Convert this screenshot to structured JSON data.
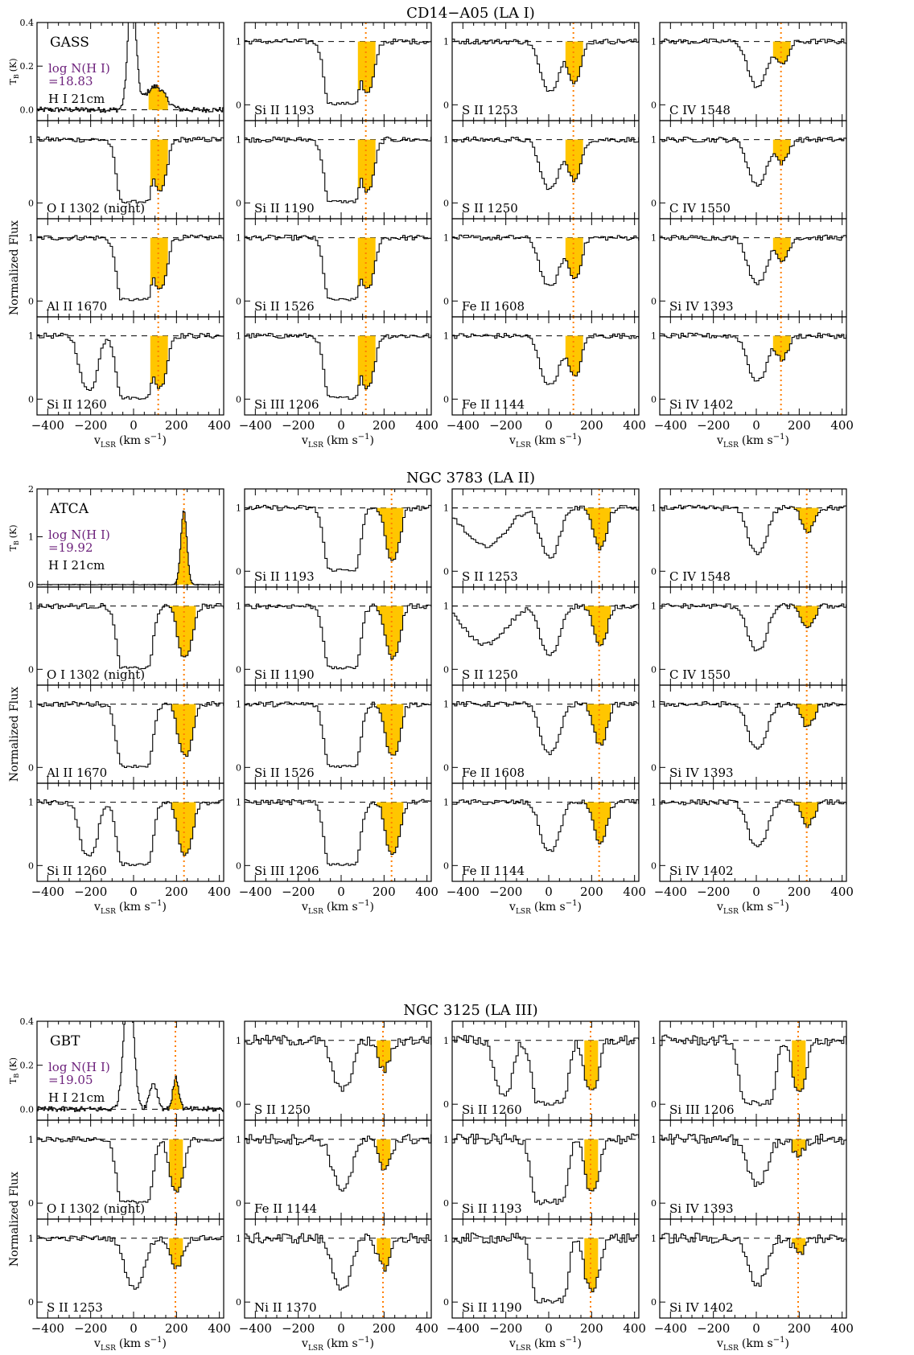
{
  "colors": {
    "fill": "#ffc600",
    "vline": "#ff7f00",
    "colden": "#6b1f7a",
    "ink": "#000000"
  },
  "xaxis": {
    "ticks": [
      -400,
      -200,
      0,
      200,
      400
    ],
    "range": [
      -450,
      420
    ],
    "label_main": "v",
    "label_sub": "LSR",
    "label_unit": "(km s",
    "label_exp": "−1",
    "label_close": ")"
  },
  "yaxis": {
    "flux_label": "Normalized Flux",
    "tb_label_main": "T",
    "tb_label_sub": "B",
    "tb_label_unit": "(K)",
    "flux_ticks": [
      "0",
      "1"
    ]
  },
  "chart_data": [
    {
      "type": "line",
      "title": "CD14−A05 (LA I)",
      "vline": 115,
      "fill_range": [
        70,
        160
      ],
      "hi": {
        "instrument": "GASS",
        "colden_line1": "log N(H I)",
        "colden_line2": "=18.83",
        "label": "H I 21cm",
        "ylim": [
          -0.05,
          0.4
        ],
        "yticks": [
          "0.0",
          "0.2",
          "0.4"
        ]
      },
      "panels": [
        {
          "label": "H I 21cm",
          "col": 0,
          "row": 0
        },
        {
          "label": "O I 1302 (night)",
          "col": 0,
          "row": 1
        },
        {
          "label": "Al II 1670",
          "col": 0,
          "row": 2
        },
        {
          "label": "Si II 1260",
          "col": 0,
          "row": 3
        },
        {
          "label": "Si II 1193",
          "col": 1,
          "row": 0
        },
        {
          "label": "Si II 1190",
          "col": 1,
          "row": 1
        },
        {
          "label": "Si II 1526",
          "col": 1,
          "row": 2
        },
        {
          "label": "Si III 1206",
          "col": 1,
          "row": 3
        },
        {
          "label": "S II 1253",
          "col": 2,
          "row": 0
        },
        {
          "label": "S II 1250",
          "col": 2,
          "row": 1
        },
        {
          "label": "Fe II 1608",
          "col": 2,
          "row": 2
        },
        {
          "label": "Fe II 1144",
          "col": 2,
          "row": 3
        },
        {
          "label": "C IV 1548",
          "col": 3,
          "row": 0
        },
        {
          "label": "C IV 1550",
          "col": 3,
          "row": 1
        },
        {
          "label": "Si IV 1393",
          "col": 3,
          "row": 2
        },
        {
          "label": "Si IV 1402",
          "col": 3,
          "row": 3
        }
      ]
    },
    {
      "type": "line",
      "title": "NGC 3783 (LA II)",
      "vline": 235,
      "fill_range": [
        160,
        290
      ],
      "hi": {
        "instrument": "ATCA",
        "colden_line1": "log N(H I)",
        "colden_line2": "=19.92",
        "label": "H I 21cm",
        "ylim": [
          -0.05,
          2.0
        ],
        "yticks": [
          "0",
          "1",
          "2"
        ]
      },
      "panels": [
        {
          "label": "H I 21cm",
          "col": 0,
          "row": 0
        },
        {
          "label": "O I 1302 (night)",
          "col": 0,
          "row": 1
        },
        {
          "label": "Al II 1670",
          "col": 0,
          "row": 2
        },
        {
          "label": "Si II 1260",
          "col": 0,
          "row": 3
        },
        {
          "label": "Si II 1193",
          "col": 1,
          "row": 0
        },
        {
          "label": "Si II 1190",
          "col": 1,
          "row": 1
        },
        {
          "label": "Si II 1526",
          "col": 1,
          "row": 2
        },
        {
          "label": "Si III 1206",
          "col": 1,
          "row": 3
        },
        {
          "label": "S II 1253",
          "col": 2,
          "row": 0
        },
        {
          "label": "S II 1250",
          "col": 2,
          "row": 1
        },
        {
          "label": "Fe II 1608",
          "col": 2,
          "row": 2
        },
        {
          "label": "Fe II 1144",
          "col": 2,
          "row": 3
        },
        {
          "label": "C IV 1548",
          "col": 3,
          "row": 0
        },
        {
          "label": "C IV 1550",
          "col": 3,
          "row": 1
        },
        {
          "label": "Si IV 1393",
          "col": 3,
          "row": 2
        },
        {
          "label": "Si IV 1402",
          "col": 3,
          "row": 3
        }
      ]
    },
    {
      "type": "line",
      "title": "NGC 3125 (LA III)",
      "vline": 195,
      "fill_range": [
        160,
        230
      ],
      "hi": {
        "instrument": "GBT",
        "colden_line1": "log N(H I)",
        "colden_line2": "=19.05",
        "label": "H I 21cm",
        "ylim": [
          -0.05,
          0.4
        ],
        "yticks": [
          "0.0",
          "0.2",
          "0.4"
        ]
      },
      "panels": [
        {
          "label": "H I 21cm",
          "col": 0,
          "row": 0
        },
        {
          "label": "O I 1302 (night)",
          "col": 0,
          "row": 1
        },
        {
          "label": "S II 1253",
          "col": 0,
          "row": 2
        },
        {
          "label": "S II 1250",
          "col": 1,
          "row": 0
        },
        {
          "label": "Fe II 1144",
          "col": 1,
          "row": 1
        },
        {
          "label": "Ni II 1370",
          "col": 1,
          "row": 2
        },
        {
          "label": "Si II 1260",
          "col": 2,
          "row": 0
        },
        {
          "label": "Si II 1193",
          "col": 2,
          "row": 1
        },
        {
          "label": "Si II 1190",
          "col": 2,
          "row": 2
        },
        {
          "label": "Si III 1206",
          "col": 3,
          "row": 0
        },
        {
          "label": "Si IV 1393",
          "col": 3,
          "row": 1
        },
        {
          "label": "Si IV 1402",
          "col": 3,
          "row": 2
        }
      ]
    }
  ]
}
